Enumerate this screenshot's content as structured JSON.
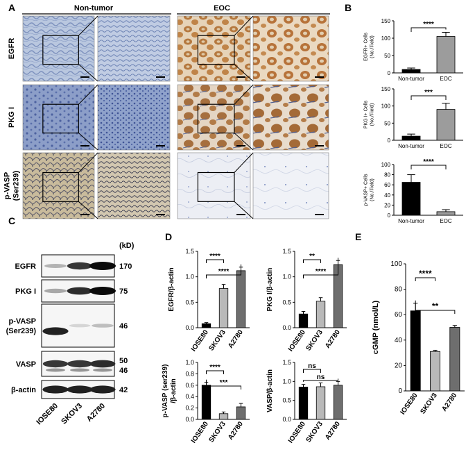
{
  "panels": {
    "A": {
      "letter": "A",
      "group_labels": [
        "Non-tumor",
        "EOC"
      ],
      "row_labels": [
        {
          "lines": [
            "EGFR"
          ]
        },
        {
          "lines": [
            "PKG I"
          ]
        },
        {
          "lines": [
            "p-VASP",
            "(Ser239)"
          ]
        }
      ]
    },
    "B": {
      "letter": "B"
    },
    "C": {
      "letter": "C",
      "unit": "(kD)",
      "blots": [
        {
          "label": [
            "EGFR"
          ],
          "kd": [
            "170"
          ],
          "bands": [
            0.25,
            0.8,
            1.0
          ]
        },
        {
          "label": [
            "PKG I"
          ],
          "kd": [
            "75"
          ],
          "bands": [
            0.3,
            0.85,
            1.0
          ]
        },
        {
          "label": [
            "p-VASP",
            "(Ser239)"
          ],
          "kd": [
            "46"
          ],
          "bands": [
            0.9,
            0.1,
            0.2
          ]
        },
        {
          "label": [
            "VASP"
          ],
          "kd": [
            "50",
            "46"
          ],
          "bands": [
            0.8,
            0.8,
            0.85
          ]
        },
        {
          "label": [
            "β-actin"
          ],
          "kd": [
            "42"
          ],
          "bands": [
            0.9,
            0.9,
            0.9
          ]
        }
      ],
      "lanes": [
        "IOSE80",
        "SKOV3",
        "A2780"
      ]
    },
    "D": {
      "letter": "D"
    },
    "E": {
      "letter": "E"
    }
  },
  "chart_data": [
    {
      "panel": "B",
      "type": "bar",
      "categories": [
        "Non-tumor",
        "EOC"
      ],
      "values": [
        10,
        105
      ],
      "errors": [
        4,
        12
      ],
      "ylabel_lines": [
        "EGFR+ Cells",
        "(No./Field)"
      ],
      "ylim": [
        0,
        150
      ],
      "yticks": [
        0,
        50,
        100,
        150
      ],
      "colors": [
        "#000000",
        "#9c9c9c"
      ],
      "brackets": [
        {
          "from": 0,
          "to": 1,
          "label": "****"
        }
      ]
    },
    {
      "panel": "B",
      "type": "bar",
      "categories": [
        "Non-tumor",
        "EOC"
      ],
      "values": [
        12,
        90
      ],
      "errors": [
        6,
        18
      ],
      "ylabel_lines": [
        "PKG I+ Cells",
        "(No./Field)"
      ],
      "ylim": [
        0,
        150
      ],
      "yticks": [
        0,
        50,
        100,
        150
      ],
      "colors": [
        "#000000",
        "#9c9c9c"
      ],
      "brackets": [
        {
          "from": 0,
          "to": 1,
          "label": "***"
        }
      ]
    },
    {
      "panel": "B",
      "type": "bar",
      "categories": [
        "Non-tumor",
        "EOC"
      ],
      "values": [
        65,
        7
      ],
      "errors": [
        15,
        4
      ],
      "ylabel_lines": [
        "p-VASP+ Cells",
        "(No./Field)"
      ],
      "ylim": [
        0,
        100
      ],
      "yticks": [
        0,
        20,
        40,
        60,
        80,
        100
      ],
      "colors": [
        "#000000",
        "#9c9c9c"
      ],
      "brackets": [
        {
          "from": 0,
          "to": 1,
          "label": "****"
        }
      ]
    },
    {
      "panel": "D",
      "type": "bar",
      "categories": [
        "IOSE80",
        "SKOV3",
        "A2780"
      ],
      "values": [
        0.08,
        0.77,
        1.12
      ],
      "errors": [
        0.02,
        0.08,
        0.07
      ],
      "ylabel_lines": [
        "EGFR/β-actin"
      ],
      "ylim": [
        0,
        1.5
      ],
      "yticks": [
        0.0,
        0.5,
        1.0,
        1.5
      ],
      "colors": [
        "#000000",
        "#b9b9b9",
        "#6e6e6e"
      ],
      "brackets": [
        {
          "from": 0,
          "to": 1,
          "label": "****"
        },
        {
          "from": 0,
          "to": 2,
          "label": "****"
        }
      ]
    },
    {
      "panel": "D",
      "type": "bar",
      "categories": [
        "IOSE80",
        "SKOV3",
        "A2780"
      ],
      "values": [
        0.27,
        0.52,
        1.24
      ],
      "errors": [
        0.05,
        0.07,
        0.08
      ],
      "ylabel_lines": [
        "PKG I/β-actin"
      ],
      "ylim": [
        0,
        1.5
      ],
      "yticks": [
        0.0,
        0.5,
        1.0,
        1.5
      ],
      "colors": [
        "#000000",
        "#b9b9b9",
        "#6e6e6e"
      ],
      "brackets": [
        {
          "from": 0,
          "to": 1,
          "label": "**"
        },
        {
          "from": 0,
          "to": 2,
          "label": "****"
        }
      ]
    },
    {
      "panel": "D",
      "type": "bar",
      "categories": [
        "IOSE80",
        "SKOV3",
        "A2780"
      ],
      "values": [
        0.6,
        0.1,
        0.22
      ],
      "errors": [
        0.05,
        0.03,
        0.06
      ],
      "ylabel_lines": [
        "p-VASP (ser239)",
        "/β-actin"
      ],
      "ylim": [
        0,
        1.0
      ],
      "yticks": [
        0.0,
        0.2,
        0.4,
        0.6,
        0.8,
        1.0
      ],
      "colors": [
        "#000000",
        "#b9b9b9",
        "#6e6e6e"
      ],
      "brackets": [
        {
          "from": 0,
          "to": 1,
          "label": "****"
        },
        {
          "from": 0,
          "to": 2,
          "label": "***"
        }
      ]
    },
    {
      "panel": "D",
      "type": "bar",
      "categories": [
        "IOSE80",
        "SKOV3",
        "A2780"
      ],
      "values": [
        0.85,
        0.86,
        0.9
      ],
      "errors": [
        0.07,
        0.1,
        0.1
      ],
      "ylabel_lines": [
        "VASP/β-actin"
      ],
      "ylim": [
        0,
        1.5
      ],
      "yticks": [
        0.0,
        0.5,
        1.0,
        1.5
      ],
      "colors": [
        "#000000",
        "#b9b9b9",
        "#6e6e6e"
      ],
      "brackets": [
        {
          "from": 0,
          "to": 1,
          "label": "ns"
        },
        {
          "from": 0,
          "to": 2,
          "label": "ns"
        }
      ]
    },
    {
      "panel": "E",
      "type": "bar",
      "categories": [
        "IOSE80",
        "SKOV3",
        "A2780"
      ],
      "values": [
        63,
        31,
        50
      ],
      "errors": [
        6,
        1,
        1.5
      ],
      "ylabel_lines": [
        "cGMP (nmol/L)"
      ],
      "ylim": [
        0,
        100
      ],
      "yticks": [
        0,
        20,
        40,
        60,
        80,
        100
      ],
      "colors": [
        "#000000",
        "#b9b9b9",
        "#6e6e6e"
      ],
      "brackets": [
        {
          "from": 0,
          "to": 1,
          "label": "****"
        },
        {
          "from": 0,
          "to": 2,
          "label": "**"
        }
      ]
    }
  ]
}
